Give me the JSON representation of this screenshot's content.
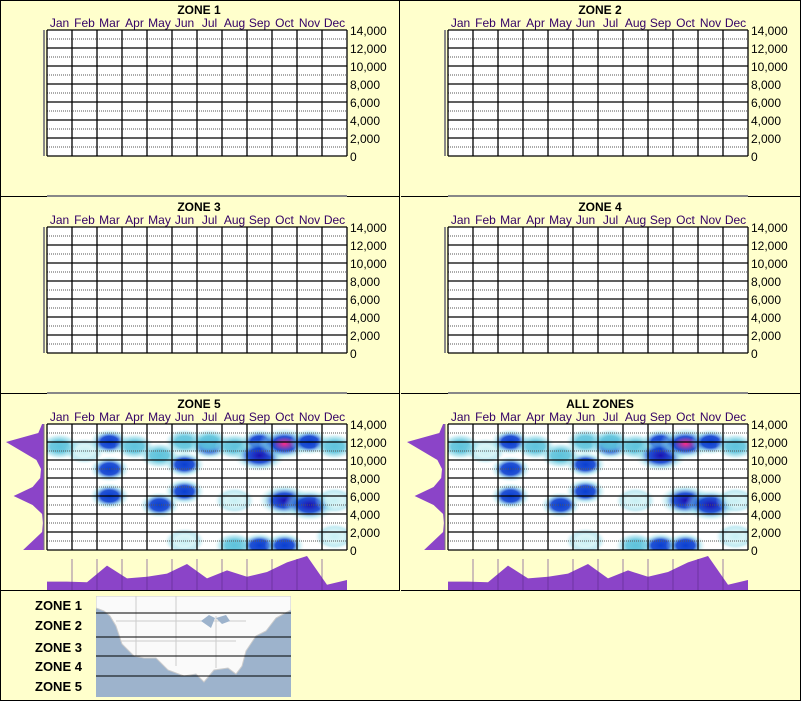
{
  "chart_data": [
    {
      "type": "heatmap",
      "title": "ZONE 1",
      "months": [
        "Jan",
        "Feb",
        "Mar",
        "Apr",
        "May",
        "Jun",
        "Jul",
        "Aug",
        "Sep",
        "Oct",
        "Nov",
        "Dec"
      ],
      "ylim": [
        0,
        14000
      ],
      "yticks": [
        "14,000",
        "12,000",
        "10,000",
        "8,000",
        "6,000",
        "4,000",
        "2,000",
        "0"
      ],
      "grid": true,
      "hotspots": []
    },
    {
      "type": "heatmap",
      "title": "ZONE 2",
      "months": [
        "Jan",
        "Feb",
        "Mar",
        "Apr",
        "May",
        "Jun",
        "Jul",
        "Aug",
        "Sep",
        "Oct",
        "Nov",
        "Dec"
      ],
      "ylim": [
        0,
        14000
      ],
      "yticks": [
        "14,000",
        "12,000",
        "10,000",
        "8,000",
        "6,000",
        "4,000",
        "2,000",
        "0"
      ],
      "grid": true,
      "hotspots": []
    },
    {
      "type": "heatmap",
      "title": "ZONE 3",
      "months": [
        "Jan",
        "Feb",
        "Mar",
        "Apr",
        "May",
        "Jun",
        "Jul",
        "Aug",
        "Sep",
        "Oct",
        "Nov",
        "Dec"
      ],
      "ylim": [
        0,
        14000
      ],
      "yticks": [
        "14,000",
        "12,000",
        "10,000",
        "8,000",
        "6,000",
        "4,000",
        "2,000",
        "0"
      ],
      "grid": true,
      "hotspots": []
    },
    {
      "type": "heatmap",
      "title": "ZONE 4",
      "months": [
        "Jan",
        "Feb",
        "Mar",
        "Apr",
        "May",
        "Jun",
        "Jul",
        "Aug",
        "Sep",
        "Oct",
        "Nov",
        "Dec"
      ],
      "ylim": [
        0,
        14000
      ],
      "yticks": [
        "14,000",
        "12,000",
        "10,000",
        "8,000",
        "6,000",
        "4,000",
        "2,000",
        "0"
      ],
      "grid": true,
      "hotspots": []
    },
    {
      "type": "heatmap",
      "title": "ZONE 5",
      "months": [
        "Jan",
        "Feb",
        "Mar",
        "Apr",
        "May",
        "Jun",
        "Jul",
        "Aug",
        "Sep",
        "Oct",
        "Nov",
        "Dec"
      ],
      "ylim": [
        0,
        14000
      ],
      "yticks": [
        "14,000",
        "12,000",
        "10,000",
        "8,000",
        "6,000",
        "4,000",
        "2,000",
        "0"
      ],
      "grid": true,
      "hotspots": [
        [
          1,
          11500,
          2
        ],
        [
          2,
          11000,
          1
        ],
        [
          3,
          12000,
          3
        ],
        [
          3,
          9000,
          3
        ],
        [
          3,
          6000,
          3
        ],
        [
          4,
          11500,
          2
        ],
        [
          5,
          10500,
          2
        ],
        [
          5,
          5000,
          3
        ],
        [
          6,
          12000,
          2
        ],
        [
          6,
          9500,
          3
        ],
        [
          6,
          6500,
          3
        ],
        [
          6,
          1000,
          1
        ],
        [
          7,
          11500,
          3
        ],
        [
          7,
          12000,
          2
        ],
        [
          8,
          11500,
          2
        ],
        [
          8,
          5500,
          1
        ],
        [
          8,
          500,
          2
        ],
        [
          9,
          12000,
          3
        ],
        [
          9,
          10500,
          4
        ],
        [
          9,
          500,
          3
        ],
        [
          10,
          11800,
          5
        ],
        [
          10,
          5500,
          4
        ],
        [
          10,
          500,
          3
        ],
        [
          11,
          12000,
          3
        ],
        [
          11,
          5000,
          4
        ],
        [
          12,
          11500,
          2
        ],
        [
          12,
          5500,
          1
        ],
        [
          12,
          1500,
          1
        ]
      ],
      "month_profile": [
        0.2,
        0.2,
        0.18,
        0.7,
        0.3,
        0.35,
        0.45,
        0.75,
        0.3,
        0.55,
        0.35,
        0.5,
        0.8,
        1.0,
        0.1,
        0.25
      ],
      "elevation_profile": [
        0.05,
        0.15,
        1.0,
        0.6,
        0.2,
        0.08,
        0.1,
        0.3,
        0.8,
        0.3,
        0.05,
        0.03,
        0.05,
        0.3,
        0.55
      ]
    },
    {
      "type": "heatmap",
      "title": "ALL ZONES",
      "months": [
        "Jan",
        "Feb",
        "Mar",
        "Apr",
        "May",
        "Jun",
        "Jul",
        "Aug",
        "Sep",
        "Oct",
        "Nov",
        "Dec"
      ],
      "ylim": [
        0,
        14000
      ],
      "yticks": [
        "14,000",
        "12,000",
        "10,000",
        "8,000",
        "6,000",
        "4,000",
        "2,000",
        "0"
      ],
      "grid": true,
      "hotspots": [
        [
          1,
          11500,
          2
        ],
        [
          2,
          11000,
          1
        ],
        [
          3,
          12000,
          3
        ],
        [
          3,
          9000,
          3
        ],
        [
          3,
          6000,
          3
        ],
        [
          4,
          11500,
          2
        ],
        [
          5,
          10500,
          2
        ],
        [
          5,
          5000,
          3
        ],
        [
          6,
          12000,
          2
        ],
        [
          6,
          9500,
          3
        ],
        [
          6,
          6500,
          3
        ],
        [
          6,
          1000,
          1
        ],
        [
          7,
          11500,
          3
        ],
        [
          7,
          12000,
          2
        ],
        [
          8,
          11500,
          2
        ],
        [
          8,
          5500,
          1
        ],
        [
          8,
          500,
          2
        ],
        [
          9,
          12000,
          3
        ],
        [
          9,
          10500,
          4
        ],
        [
          9,
          500,
          3
        ],
        [
          10,
          11800,
          5
        ],
        [
          10,
          5500,
          4
        ],
        [
          10,
          500,
          3
        ],
        [
          11,
          12000,
          3
        ],
        [
          11,
          5000,
          4
        ],
        [
          12,
          11500,
          2
        ],
        [
          12,
          5500,
          1
        ],
        [
          12,
          1500,
          1
        ]
      ],
      "month_profile": [
        0.2,
        0.2,
        0.18,
        0.7,
        0.3,
        0.35,
        0.45,
        0.75,
        0.3,
        0.55,
        0.35,
        0.5,
        0.8,
        1.0,
        0.1,
        0.25
      ],
      "elevation_profile": [
        0.05,
        0.15,
        1.0,
        0.6,
        0.2,
        0.08,
        0.1,
        0.3,
        0.8,
        0.3,
        0.05,
        0.03,
        0.05,
        0.3,
        0.55
      ]
    }
  ],
  "colors": {
    "background": "#ffffcc",
    "profile": "#8b44c8",
    "month_label": "#330066",
    "intensity": [
      "#c8f0f4",
      "#5ec3dc",
      "#0a3fd0",
      "#1a10b0",
      "#ff2a8a"
    ]
  },
  "legend": {
    "zones": [
      "ZONE 1",
      "ZONE 2",
      "ZONE 3",
      "ZONE 4",
      "ZONE 5"
    ]
  }
}
